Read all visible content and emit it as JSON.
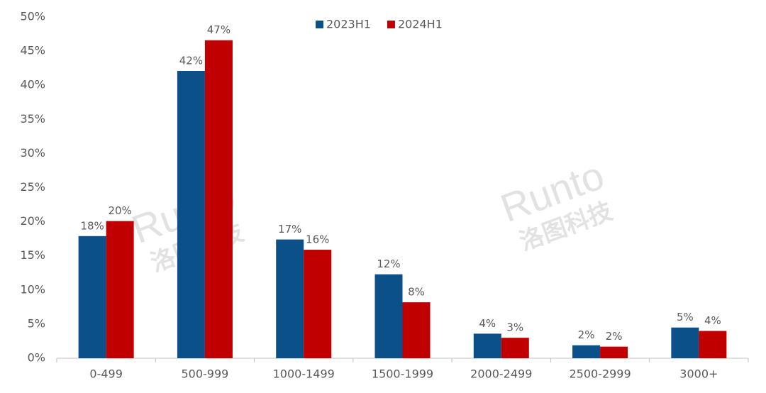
{
  "chart_data": {
    "type": "bar",
    "categories": [
      "0-499",
      "500-999",
      "1000-1499",
      "1500-1999",
      "2000-2499",
      "2500-2999",
      "3000+"
    ],
    "series": [
      {
        "name": "2023H1",
        "color": "#0b5088",
        "values": [
          17.9,
          42.1,
          17.4,
          12.3,
          3.6,
          1.9,
          4.5
        ],
        "value_labels": [
          "18%",
          "42%",
          "17%",
          "12%",
          "4%",
          "2%",
          "5%"
        ]
      },
      {
        "name": "2024H1",
        "color": "#c00000",
        "values": [
          20.1,
          46.6,
          15.9,
          8.2,
          3.0,
          1.7,
          4.0
        ],
        "value_labels": [
          "20%",
          "47%",
          "16%",
          "8%",
          "3%",
          "2%",
          "4%"
        ]
      }
    ],
    "ylim": [
      0,
      50
    ],
    "yticks": [
      {
        "value": 0,
        "label": "0%"
      },
      {
        "value": 5,
        "label": "5%"
      },
      {
        "value": 10,
        "label": "10%"
      },
      {
        "value": 15,
        "label": "15%"
      },
      {
        "value": 20,
        "label": "20%"
      },
      {
        "value": 25,
        "label": "25%"
      },
      {
        "value": 30,
        "label": "30%"
      },
      {
        "value": 35,
        "label": "35%"
      },
      {
        "value": 40,
        "label": "40%"
      },
      {
        "value": 45,
        "label": "45%"
      },
      {
        "value": 50,
        "label": "50%"
      }
    ],
    "grid": false,
    "legend": "top",
    "watermark": {
      "brand": "Runto",
      "name": "洛图科技"
    }
  }
}
